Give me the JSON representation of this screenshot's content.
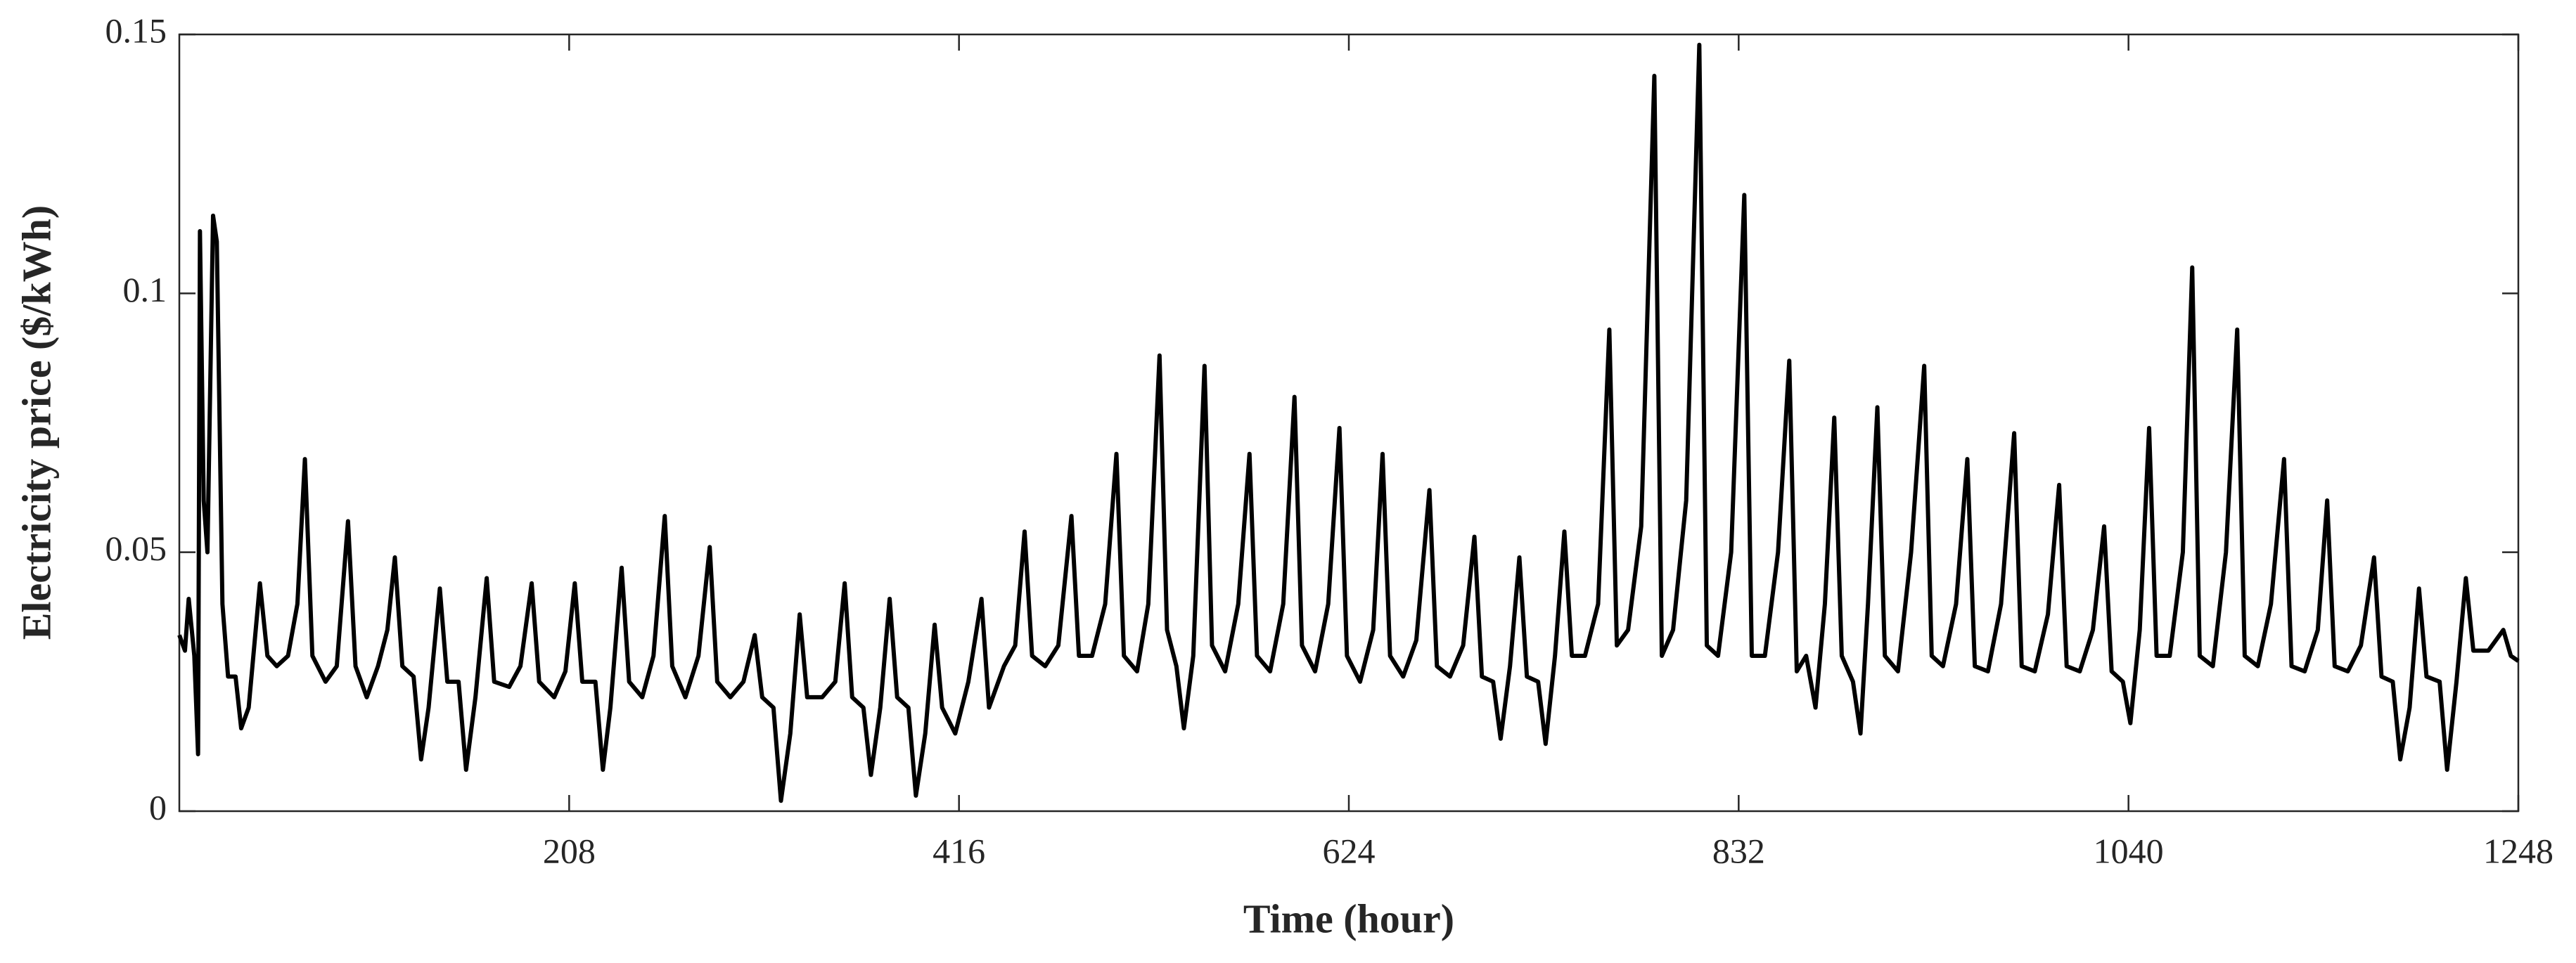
{
  "chart_data": {
    "type": "line",
    "xlabel": "Time (hour)",
    "ylabel": "Electricity price ($/kWh)",
    "xlim": [
      0,
      1248
    ],
    "xticks": [
      208,
      416,
      624,
      832,
      1040,
      1248
    ],
    "ylim": [
      0,
      0.15
    ],
    "yticks": [
      0,
      0.05,
      0.1,
      0.15
    ],
    "grid": false,
    "box": true,
    "series": [
      {
        "color": "#000000",
        "x": [
          0,
          3,
          5,
          8,
          10,
          11,
          13,
          15,
          18,
          20,
          23,
          26,
          30,
          33,
          37,
          43,
          47,
          52,
          58,
          63,
          67,
          71,
          78,
          84,
          90,
          94,
          100,
          106,
          111,
          115,
          119,
          125,
          129,
          133,
          139,
          143,
          149,
          153,
          158,
          164,
          168,
          176,
          182,
          188,
          192,
          200,
          206,
          211,
          215,
          222,
          226,
          230,
          236,
          240,
          247,
          253,
          259,
          263,
          270,
          277,
          283,
          287,
          294,
          301,
          307,
          311,
          317,
          321,
          326,
          331,
          335,
          343,
          350,
          355,
          359,
          365,
          369,
          374,
          379,
          383,
          389,
          393,
          398,
          403,
          407,
          414,
          421,
          428,
          432,
          440,
          446,
          451,
          455,
          462,
          469,
          476,
          480,
          487,
          494,
          500,
          504,
          511,
          517,
          523,
          527,
          532,
          536,
          541,
          547,
          551,
          558,
          565,
          571,
          575,
          582,
          589,
          595,
          599,
          606,
          613,
          619,
          623,
          630,
          637,
          642,
          646,
          653,
          660,
          667,
          671,
          678,
          685,
          691,
          695,
          701,
          705,
          710,
          715,
          719,
          725,
          729,
          734,
          739,
          743,
          750,
          757,
          763,
          767,
          773,
          780,
          787,
          791,
          797,
          804,
          811,
          815,
          821,
          828,
          835,
          839,
          846,
          853,
          859,
          863,
          868,
          873,
          878,
          883,
          887,
          893,
          897,
          901,
          906,
          910,
          917,
          924,
          931,
          935,
          941,
          948,
          954,
          958,
          965,
          972,
          979,
          983,
          990,
          997,
          1003,
          1007,
          1014,
          1021,
          1027,
          1031,
          1037,
          1041,
          1046,
          1051,
          1055,
          1062,
          1069,
          1074,
          1078,
          1085,
          1092,
          1098,
          1102,
          1109,
          1116,
          1123,
          1127,
          1134,
          1141,
          1146,
          1150,
          1157,
          1164,
          1171,
          1175,
          1181,
          1185,
          1190,
          1195,
          1199,
          1206,
          1210,
          1215,
          1220,
          1224,
          1232,
          1240,
          1244,
          1248
        ],
        "values": [
          0.034,
          0.031,
          0.041,
          0.03,
          0.011,
          0.112,
          0.06,
          0.05,
          0.115,
          0.11,
          0.04,
          0.026,
          0.026,
          0.016,
          0.02,
          0.044,
          0.03,
          0.028,
          0.03,
          0.04,
          0.068,
          0.03,
          0.025,
          0.028,
          0.056,
          0.028,
          0.022,
          0.028,
          0.035,
          0.049,
          0.028,
          0.026,
          0.01,
          0.02,
          0.043,
          0.025,
          0.025,
          0.008,
          0.022,
          0.045,
          0.025,
          0.024,
          0.028,
          0.044,
          0.025,
          0.022,
          0.027,
          0.044,
          0.025,
          0.025,
          0.008,
          0.02,
          0.047,
          0.025,
          0.022,
          0.03,
          0.057,
          0.028,
          0.022,
          0.03,
          0.051,
          0.025,
          0.022,
          0.025,
          0.034,
          0.022,
          0.02,
          0.002,
          0.015,
          0.038,
          0.022,
          0.022,
          0.025,
          0.044,
          0.022,
          0.02,
          0.007,
          0.02,
          0.041,
          0.022,
          0.02,
          0.003,
          0.015,
          0.036,
          0.02,
          0.015,
          0.025,
          0.041,
          0.02,
          0.028,
          0.032,
          0.054,
          0.03,
          0.028,
          0.032,
          0.057,
          0.03,
          0.03,
          0.04,
          0.069,
          0.03,
          0.027,
          0.04,
          0.088,
          0.035,
          0.028,
          0.016,
          0.03,
          0.086,
          0.032,
          0.027,
          0.04,
          0.069,
          0.03,
          0.027,
          0.04,
          0.08,
          0.032,
          0.027,
          0.04,
          0.074,
          0.03,
          0.025,
          0.035,
          0.069,
          0.03,
          0.026,
          0.033,
          0.062,
          0.028,
          0.026,
          0.032,
          0.053,
          0.026,
          0.025,
          0.014,
          0.028,
          0.049,
          0.026,
          0.025,
          0.013,
          0.03,
          0.054,
          0.03,
          0.03,
          0.04,
          0.093,
          0.032,
          0.035,
          0.055,
          0.142,
          0.03,
          0.035,
          0.06,
          0.148,
          0.032,
          0.03,
          0.05,
          0.119,
          0.03,
          0.03,
          0.05,
          0.087,
          0.027,
          0.03,
          0.02,
          0.04,
          0.076,
          0.03,
          0.025,
          0.015,
          0.04,
          0.078,
          0.03,
          0.027,
          0.05,
          0.086,
          0.03,
          0.028,
          0.04,
          0.068,
          0.028,
          0.027,
          0.04,
          0.073,
          0.028,
          0.027,
          0.038,
          0.063,
          0.028,
          0.027,
          0.035,
          0.055,
          0.027,
          0.025,
          0.017,
          0.035,
          0.074,
          0.03,
          0.03,
          0.05,
          0.105,
          0.03,
          0.028,
          0.05,
          0.093,
          0.03,
          0.028,
          0.04,
          0.068,
          0.028,
          0.027,
          0.035,
          0.06,
          0.028,
          0.027,
          0.032,
          0.049,
          0.026,
          0.025,
          0.01,
          0.02,
          0.043,
          0.026,
          0.025,
          0.008,
          0.025,
          0.045,
          0.031,
          0.031,
          0.035,
          0.03,
          0.029
        ]
      }
    ]
  }
}
